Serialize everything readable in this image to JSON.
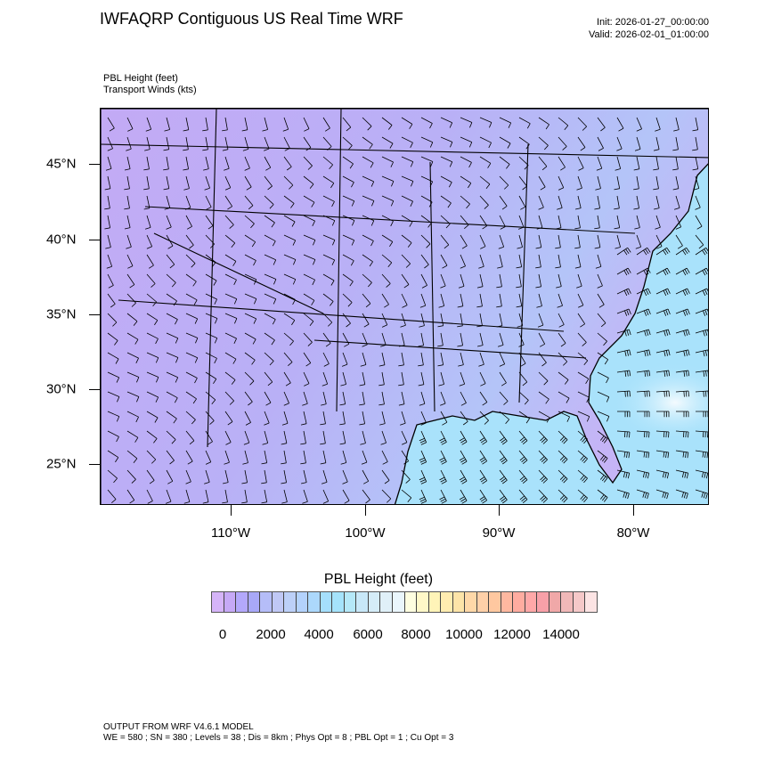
{
  "header": {
    "title": "IWFAQRP Contiguous US Real Time WRF",
    "init": "Init: 2026-01-27_00:00:00",
    "valid": "Valid: 2026-02-01_01:00:00",
    "field_label": "PBL Height   (feet)",
    "vector_label": "Transport Winds   (kts)"
  },
  "map": {
    "lat_labels": [
      "45°N",
      "40°N",
      "35°N",
      "30°N",
      "25°N"
    ],
    "lon_labels": [
      "110°W",
      "100°W",
      "90°W",
      "80°W"
    ],
    "colors": {
      "land_low": "#c3aaf5",
      "ocean": "#a9e2fb",
      "high_patch": "#eaf6fc"
    }
  },
  "colorbar": {
    "title": "PBL Height  (feet)",
    "labels": [
      "0",
      "2000",
      "4000",
      "6000",
      "8000",
      "10000",
      "12000",
      "14000"
    ],
    "colors": [
      "#d5b4f8",
      "#c6a9f6",
      "#b3a8fb",
      "#a8a8f8",
      "#b5bdf8",
      "#c0c8f5",
      "#bcd0f8",
      "#b3d2fc",
      "#acd8fc",
      "#a5dffc",
      "#a5e3fb",
      "#b5e8f8",
      "#c8e8f8",
      "#d5ecf8",
      "#e0f0f8",
      "#eaf6fc",
      "#fefee0",
      "#fff8c8",
      "#fff4b8",
      "#ffecb0",
      "#fde4a8",
      "#ffd8a8",
      "#ffd0a8",
      "#ffc8a0",
      "#ffb8a0",
      "#ffaca0",
      "#ffa8a8",
      "#f8a0a8",
      "#f0a8a8",
      "#f0b8b8",
      "#f5c8c8",
      "#fce4e4"
    ]
  },
  "footer": {
    "line1": "OUTPUT FROM WRF V4.6.1 MODEL",
    "line2": "WE = 580 ; SN = 380 ; Levels = 38 ; Dis = 8km ; Phys Opt = 8 ; PBL Opt = 1 ; Cu Opt = 3"
  }
}
